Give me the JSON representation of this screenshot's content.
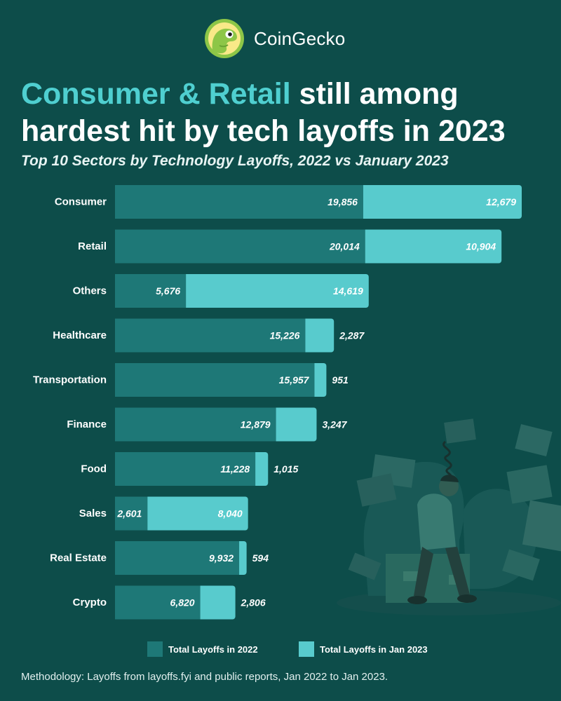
{
  "brand": {
    "name": "CoinGecko",
    "logo_icon": "gecko-logo-icon"
  },
  "title": {
    "highlight": "Consumer & Retail",
    "rest": " still among hardest hit by tech layoffs in 2023"
  },
  "subtitle": "Top 10 Sectors by Technology Layoffs, 2022 vs January 2023",
  "colors": {
    "background": "#0d4d4a",
    "series_2022": "#1e7877",
    "series_2023": "#58cbcd",
    "highlight": "#4fcfd0"
  },
  "chart_data": {
    "type": "bar",
    "orientation": "horizontal",
    "stacked": true,
    "categories": [
      "Consumer",
      "Retail",
      "Others",
      "Healthcare",
      "Transportation",
      "Finance",
      "Food",
      "Sales",
      "Real Estate",
      "Crypto"
    ],
    "series": [
      {
        "name": "Total Layoffs in 2022",
        "values": [
          19856,
          20014,
          5676,
          15226,
          15957,
          12879,
          11228,
          2601,
          9932,
          6820
        ],
        "labels": [
          "19,856",
          "20,014",
          "5,676",
          "15,226",
          "15,957",
          "12,879",
          "11,228",
          "2,601",
          "9,932",
          "6,820"
        ]
      },
      {
        "name": "Total Layoffs in Jan 2023",
        "values": [
          12679,
          10904,
          14619,
          2287,
          951,
          3247,
          1015,
          8040,
          594,
          2806
        ],
        "labels": [
          "12,679",
          "10,904",
          "14,619",
          "2,287",
          "951",
          "3,247",
          "1,015",
          "8,040",
          "594",
          "2,806"
        ]
      }
    ],
    "legend": "bottom",
    "grid": false
  },
  "footer": "Methodology: Layoffs from layoffs.fyi and public reports, Jan 2022 to Jan 2023."
}
